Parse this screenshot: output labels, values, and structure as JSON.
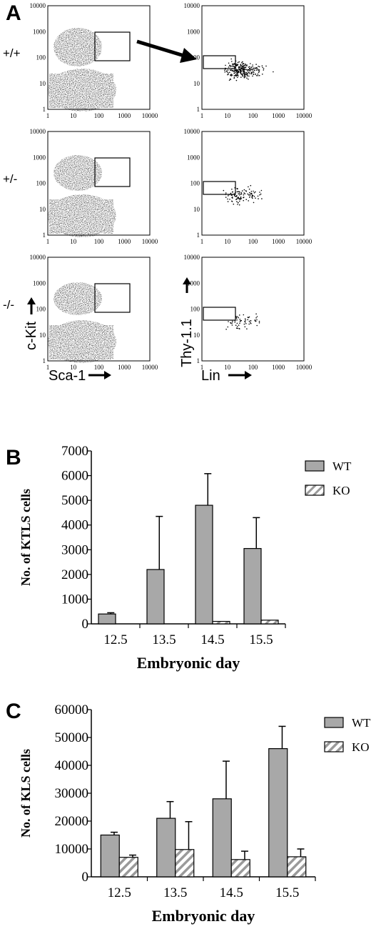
{
  "panel_a": {
    "letter": "A",
    "genotypes": [
      "+/+",
      "+/-",
      "-/-"
    ],
    "left_axis_ticks": {
      "x": [
        "1",
        "10",
        "100",
        "1000",
        "10000"
      ],
      "y": [
        "1",
        "10",
        "100",
        "1000",
        "10000"
      ]
    },
    "left_xlabel": "Sca-1",
    "left_ylabel": "c-Kit",
    "right_xlabel": "Lin",
    "right_ylabel": "Thy-1.1"
  },
  "chart_data": [
    {
      "type": "bar",
      "panel": "B",
      "ylabel": "No. of KTLS cells",
      "xlabel": "Embryonic day",
      "categories": [
        "12.5",
        "13.5",
        "14.5",
        "15.5"
      ],
      "yticks": [
        "0",
        "1000",
        "2000",
        "3000",
        "4000",
        "5000",
        "6000",
        "7000"
      ],
      "ylim": [
        0,
        7000
      ],
      "series": [
        {
          "name": "WT",
          "color": "#a8a8a8",
          "pattern": "solid",
          "values": [
            400,
            2200,
            4800,
            3050
          ],
          "errors": [
            50,
            2150,
            1280,
            1250
          ]
        },
        {
          "name": "KO",
          "color": "#ffffff",
          "pattern": "hatched",
          "values": [
            0,
            0,
            100,
            150
          ],
          "errors": [
            0,
            0,
            0,
            0
          ]
        }
      ],
      "legend_position": "top-right"
    },
    {
      "type": "bar",
      "panel": "C",
      "ylabel": "No. of KLS cells",
      "xlabel": "Embryonic day",
      "categories": [
        "12.5",
        "13.5",
        "14.5",
        "15.5"
      ],
      "yticks": [
        "0",
        "10000",
        "20000",
        "30000",
        "40000",
        "50000",
        "60000"
      ],
      "ylim": [
        0,
        60000
      ],
      "series": [
        {
          "name": "WT",
          "color": "#a8a8a8",
          "pattern": "solid",
          "values": [
            15000,
            21000,
            28000,
            46000
          ],
          "errors": [
            1000,
            6000,
            13500,
            8000
          ]
        },
        {
          "name": "KO",
          "color": "#a8a8a8",
          "pattern": "hatched",
          "values": [
            7000,
            9800,
            6200,
            7200
          ],
          "errors": [
            800,
            10000,
            3000,
            2800
          ]
        }
      ],
      "legend_position": "top-right"
    }
  ]
}
